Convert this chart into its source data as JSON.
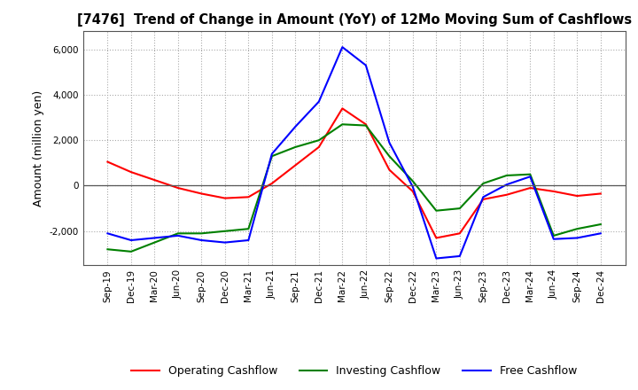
{
  "title": "[7476]  Trend of Change in Amount (YoY) of 12Mo Moving Sum of Cashflows",
  "ylabel": "Amount (million yen)",
  "ylim": [
    -3500,
    6800
  ],
  "yticks": [
    -2000,
    0,
    2000,
    4000,
    6000
  ],
  "x_labels": [
    "Sep-19",
    "Dec-19",
    "Mar-20",
    "Jun-20",
    "Sep-20",
    "Dec-20",
    "Mar-21",
    "Jun-21",
    "Sep-21",
    "Dec-21",
    "Mar-22",
    "Jun-22",
    "Sep-22",
    "Dec-22",
    "Mar-23",
    "Jun-23",
    "Sep-23",
    "Dec-23",
    "Mar-24",
    "Jun-24",
    "Sep-24",
    "Dec-24"
  ],
  "operating": [
    1050,
    600,
    250,
    -100,
    -350,
    -550,
    -500,
    100,
    900,
    1700,
    3400,
    2700,
    700,
    -250,
    -2300,
    -2100,
    -600,
    -400,
    -100,
    -250,
    -450,
    -350
  ],
  "investing": [
    -2800,
    -2900,
    -2500,
    -2100,
    -2100,
    -2000,
    -1900,
    1300,
    1700,
    2000,
    2700,
    2650,
    1300,
    200,
    -1100,
    -1000,
    100,
    450,
    500,
    -2200,
    -1900,
    -1700
  ],
  "free": [
    -2100,
    -2400,
    -2300,
    -2200,
    -2400,
    -2500,
    -2400,
    1400,
    2600,
    3700,
    6100,
    5300,
    1900,
    -50,
    -3200,
    -3100,
    -500,
    50,
    400,
    -2350,
    -2300,
    -2100
  ],
  "operating_color": "#ff0000",
  "investing_color": "#008000",
  "free_color": "#0000ff",
  "bg_color": "#ffffff",
  "grid_color": "#aaaaaa"
}
